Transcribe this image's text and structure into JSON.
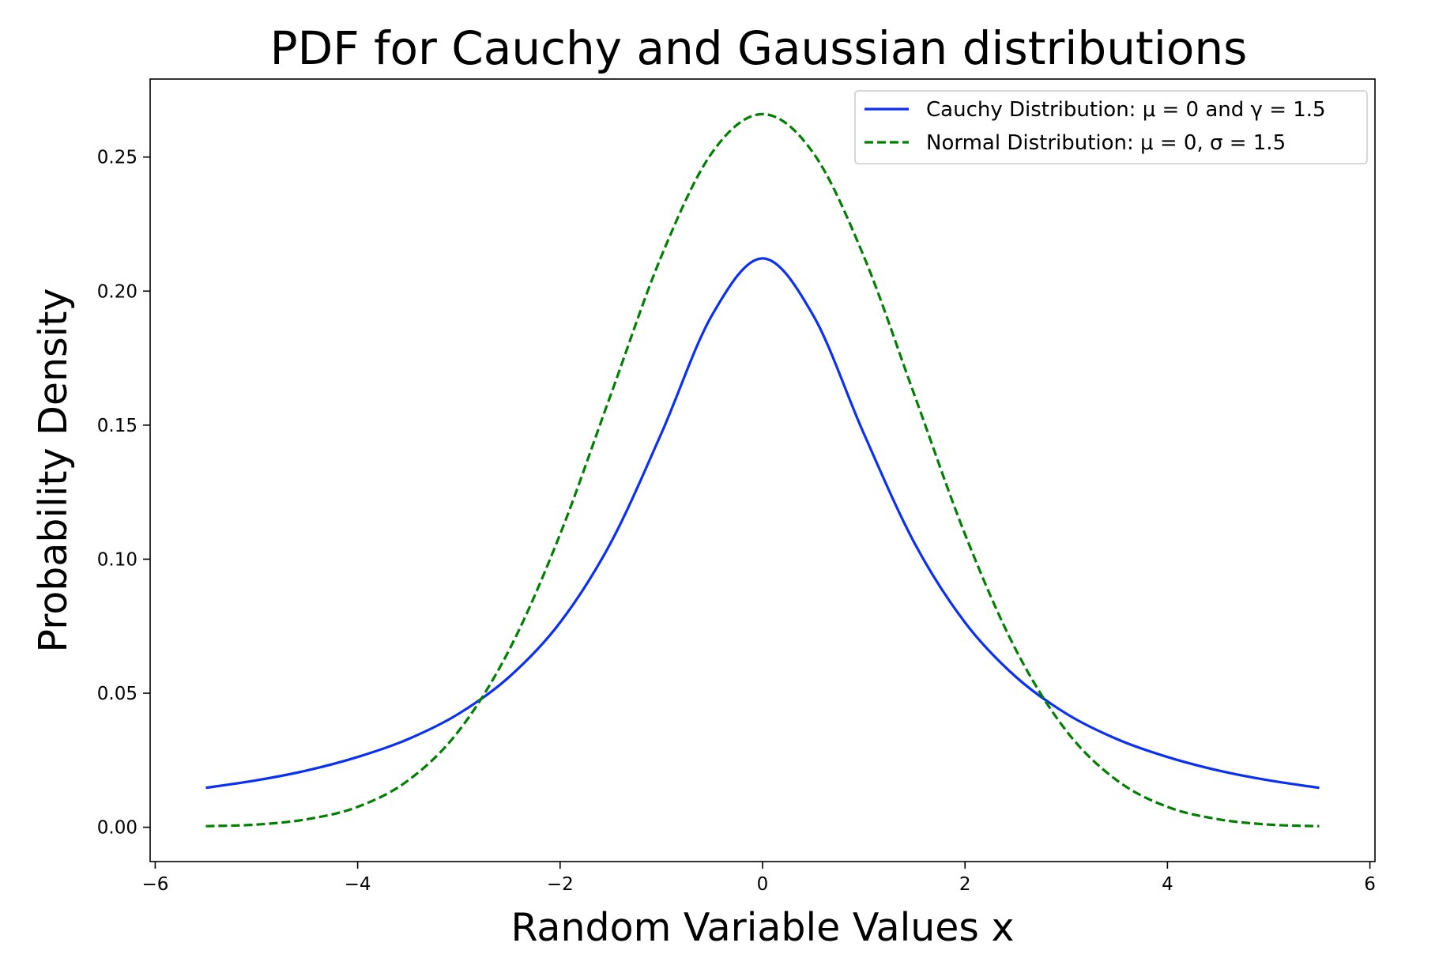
{
  "chart_data": {
    "type": "line",
    "title": "PDF for Cauchy and Gaussian distributions",
    "xlabel": "Random Variable Values x",
    "ylabel": "Probability Density",
    "xlim": [
      -6.05,
      6.05
    ],
    "ylim": [
      -0.0128,
      0.2791
    ],
    "x_ticks": [
      -6,
      -4,
      -2,
      0,
      2,
      4,
      6
    ],
    "x_tick_labels": [
      "−6",
      "−4",
      "−2",
      "0",
      "2",
      "4",
      "6"
    ],
    "y_ticks": [
      0.0,
      0.05,
      0.1,
      0.15,
      0.2,
      0.25
    ],
    "y_tick_labels": [
      "0.00",
      "0.05",
      "0.10",
      "0.15",
      "0.20",
      "0.25"
    ],
    "grid": false,
    "legend_position": "top-right",
    "series": [
      {
        "name": "Cauchy Distribution: μ = 0 and γ = 1.5",
        "color": "#0a2ff5",
        "style": "solid",
        "x": [
          -5.5,
          -5.0,
          -4.5,
          -4.0,
          -3.5,
          -3.0,
          -2.5,
          -2.0,
          -1.5,
          -1.0,
          -0.5,
          0.0,
          0.5,
          1.0,
          1.5,
          2.0,
          2.5,
          3.0,
          3.5,
          4.0,
          4.5,
          5.0,
          5.5
        ],
        "y": [
          0.0147,
          0.0175,
          0.0212,
          0.0262,
          0.0329,
          0.0424,
          0.0562,
          0.0764,
          0.1061,
          0.1469,
          0.191,
          0.2122,
          0.191,
          0.1469,
          0.1061,
          0.0764,
          0.0562,
          0.0424,
          0.0329,
          0.0262,
          0.0212,
          0.0175,
          0.0147
        ]
      },
      {
        "name": "Normal Distribution: μ = 0, σ = 1.5",
        "color": "#008000",
        "style": "dashed",
        "x": [
          -5.5,
          -5.0,
          -4.5,
          -4.0,
          -3.5,
          -3.0,
          -2.5,
          -2.0,
          -1.5,
          -1.0,
          -0.5,
          0.0,
          0.5,
          1.0,
          1.5,
          2.0,
          2.5,
          3.0,
          3.5,
          4.0,
          4.5,
          5.0,
          5.5
        ],
        "y": [
          0.0004,
          0.001,
          0.003,
          0.0076,
          0.0175,
          0.036,
          0.0664,
          0.1093,
          0.1613,
          0.213,
          0.2516,
          0.266,
          0.2516,
          0.213,
          0.1613,
          0.1093,
          0.0664,
          0.036,
          0.0175,
          0.0076,
          0.003,
          0.001,
          0.0004
        ]
      }
    ]
  }
}
